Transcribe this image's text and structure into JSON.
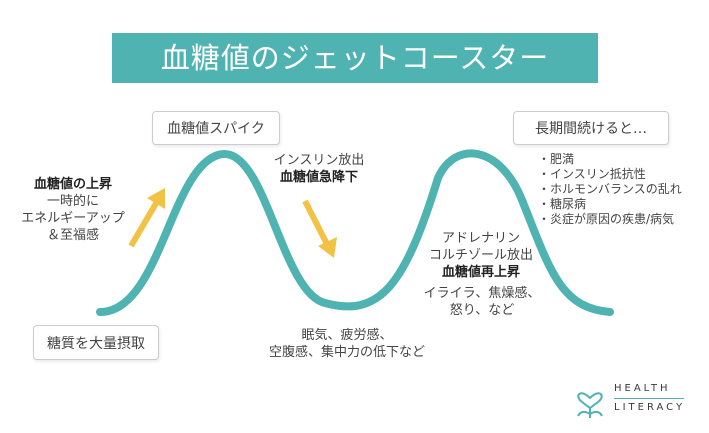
{
  "title": "血糖値のジェットコースター",
  "labels": {
    "spike": "血糖値スパイク",
    "continue": "長期間続けると…",
    "intake": "糖質を大量摂取"
  },
  "rise": {
    "heading": "血糖値の上昇",
    "line1": "一時的に",
    "line2": "エネルギーアップ",
    "line3": "＆至福感"
  },
  "insulin": {
    "line1": "インスリン放出",
    "heading": "血糖値急降下"
  },
  "adrenaline": {
    "line1": "アドレナリン",
    "line2": "コルチゾール放出",
    "heading": "血糖値再上昇"
  },
  "irritation": {
    "line1": "イライラ、焦燥感、",
    "line2": "怒り、など"
  },
  "trough": {
    "line1": "眠気、疲労感、",
    "line2": "空腹感、集中力の低下など"
  },
  "effects": [
    "・肥満",
    "・インスリン抵抗性",
    "・ホルモンバランスの乱れ",
    "・糖尿病",
    "・炎症が原因の疾患/病気"
  ],
  "logo": {
    "line1": "HEALTH",
    "line2": "LITERACY"
  },
  "colors": {
    "accent": "#4fb3b1",
    "arrow": "#f2c244"
  }
}
